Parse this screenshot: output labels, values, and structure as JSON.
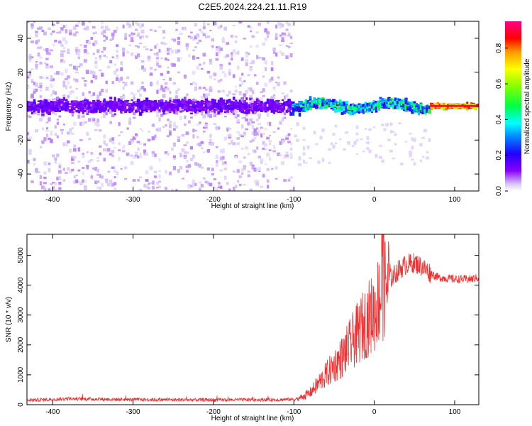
{
  "title": "C2E5.2024.224.21.11.R19",
  "colors": {
    "snr_line": "#f03030",
    "spec_low": "#dcc8f8",
    "spec_high": "#ff0000"
  },
  "chart_data": [
    {
      "type": "heatmap",
      "xlabel": "Height of straight line (km)",
      "ylabel": "Frequency (Hz)",
      "xlim": [
        -432,
        130
      ],
      "ylim": [
        -50,
        50
      ],
      "x_ticks": [
        -400,
        -300,
        -200,
        -100,
        0,
        100
      ],
      "y_ticks": [
        -40,
        -20,
        0,
        20,
        40
      ],
      "colorbar": {
        "label": "Normalized spectral amplitude",
        "range": [
          0.0,
          0.95
        ],
        "ticks": [
          0.0,
          0.2,
          0.4,
          0.6,
          0.8
        ],
        "colormap": "rainbow"
      },
      "description_regions": [
        {
          "x_range": [
            -432,
            -102
          ],
          "freq_spread_hz": 50,
          "amplitude_core": 0.12,
          "amplitude_scatter": 0.02
        },
        {
          "x_range": [
            -102,
            70
          ],
          "freq_spread_hz": 8,
          "amplitude_core": 0.5,
          "amplitude_scatter": 0.2
        },
        {
          "x_range": [
            70,
            130
          ],
          "freq_spread_hz": 2,
          "amplitude_core": 0.9,
          "amplitude_scatter": 0.4
        }
      ]
    },
    {
      "type": "line",
      "xlabel": "Height of straight line (km)",
      "ylabel": "SNR (10 * v/v)",
      "xlim": [
        -432,
        130
      ],
      "ylim": [
        0,
        5700
      ],
      "x_ticks": [
        -400,
        -300,
        -200,
        -100,
        0,
        100
      ],
      "y_ticks": [
        0,
        1000,
        2000,
        3000,
        4000,
        5000
      ],
      "series": [
        {
          "x": [
            -432,
            -400,
            -380,
            -300,
            -200,
            -120,
            -100,
            -90,
            -80,
            -70,
            -60,
            -50,
            -40,
            -30,
            -20,
            -10,
            0,
            5,
            10,
            20,
            30,
            40,
            50,
            60,
            70,
            80,
            100,
            120,
            130
          ],
          "y": [
            150,
            180,
            200,
            170,
            160,
            170,
            180,
            250,
            400,
            700,
            1000,
            1300,
            1600,
            2000,
            2400,
            2800,
            3100,
            3500,
            3800,
            4200,
            4500,
            4700,
            4750,
            4600,
            4400,
            4250,
            4200,
            4200,
            4250
          ]
        }
      ]
    }
  ]
}
